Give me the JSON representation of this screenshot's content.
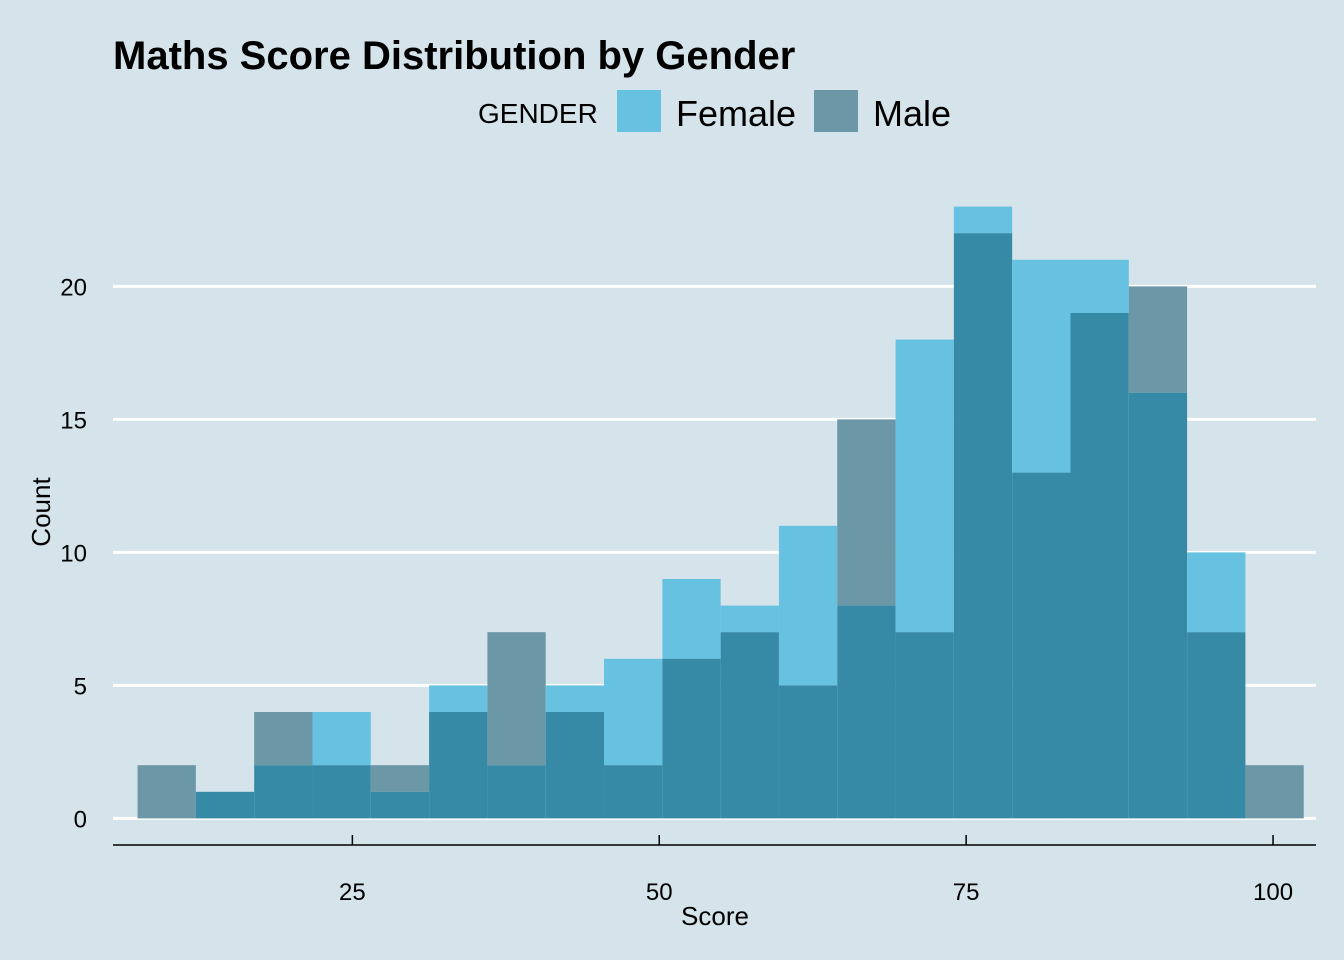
{
  "chart_data": {
    "type": "bar",
    "title": "Maths Score Distribution by Gender",
    "xlabel": "Score",
    "ylabel": "Count",
    "legend": {
      "title": "GENDER",
      "position": "top"
    },
    "xlim": [
      5.5,
      103.5
    ],
    "ylim": [
      -1,
      24
    ],
    "x_ticks": [
      25,
      50,
      75,
      100
    ],
    "y_ticks": [
      0,
      5,
      10,
      15,
      20
    ],
    "grid": {
      "horizontal": true,
      "vertical": false
    },
    "bins": [
      [
        7.5,
        12.25
      ],
      [
        12.25,
        17
      ],
      [
        17,
        21.75
      ],
      [
        21.75,
        26.5
      ],
      [
        26.5,
        31.25
      ],
      [
        31.25,
        36
      ],
      [
        36,
        40.75
      ],
      [
        40.75,
        45.5
      ],
      [
        45.5,
        50.25
      ],
      [
        50.25,
        55
      ],
      [
        55,
        59.75
      ],
      [
        59.75,
        64.5
      ],
      [
        64.5,
        69.25
      ],
      [
        69.25,
        74
      ],
      [
        74,
        78.75
      ],
      [
        78.75,
        83.5
      ],
      [
        83.5,
        88.25
      ],
      [
        88.25,
        93
      ],
      [
        93,
        97.75
      ],
      [
        97.75,
        102.5
      ]
    ],
    "series": [
      {
        "name": "Female",
        "color": "#67c2e1",
        "values": [
          0,
          1,
          2,
          4,
          1,
          5,
          2,
          5,
          6,
          9,
          8,
          11,
          8,
          18,
          23,
          21,
          21,
          16,
          10,
          0
        ]
      },
      {
        "name": "Male",
        "color": "#6b97a6",
        "values": [
          2,
          1,
          4,
          2,
          2,
          4,
          7,
          4,
          2,
          6,
          7,
          5,
          15,
          7,
          22,
          13,
          19,
          20,
          7,
          2
        ]
      }
    ],
    "overlap_color": "#368aa6"
  }
}
